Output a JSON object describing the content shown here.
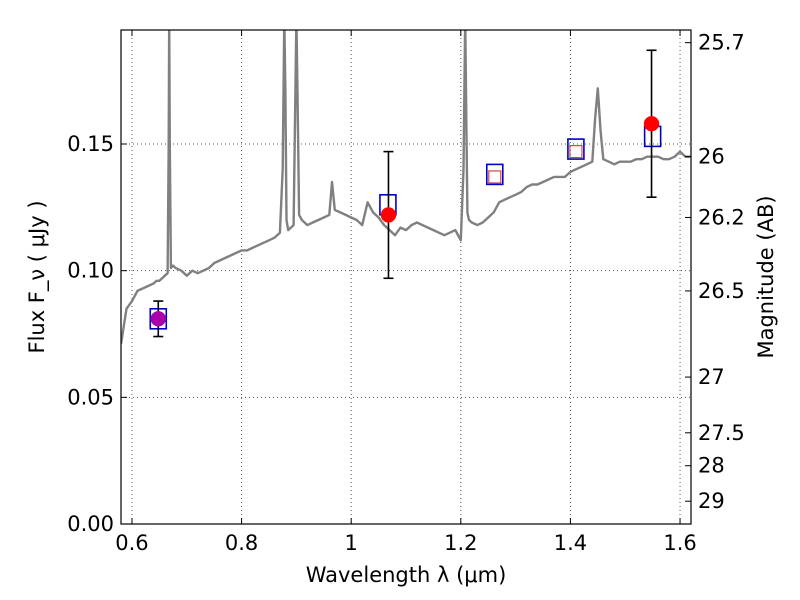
{
  "chart_data": {
    "type": "scatter",
    "title": "",
    "xlabel": "Wavelength  λ (μm)",
    "ylabel": "Flux  F_ν  ( μJy )",
    "ylabel_right": "Magnitude (AB)",
    "xlim": [
      0.58,
      1.62
    ],
    "ylim": [
      0.0,
      0.195
    ],
    "grid": true,
    "grid_style": "dotted",
    "x_ticks": [
      0.6,
      0.8,
      1.0,
      1.2,
      1.4,
      1.6
    ],
    "x_tick_labels": [
      "0.6",
      "0.8",
      "1",
      "1.2",
      "1.4",
      "1.6"
    ],
    "y_ticks": [
      0.0,
      0.05,
      0.1,
      0.15
    ],
    "y_tick_labels": [
      "0.00",
      "0.05",
      "0.10",
      "0.15"
    ],
    "right_ticks": [
      {
        "label": "25.7",
        "flux": 0.19
      },
      {
        "label": "26",
        "flux": 0.145
      },
      {
        "label": "26.2",
        "flux": 0.121
      },
      {
        "label": "26.5",
        "flux": 0.092
      },
      {
        "label": "27",
        "flux": 0.058
      },
      {
        "label": "27.5",
        "flux": 0.036
      },
      {
        "label": "28",
        "flux": 0.023
      },
      {
        "label": "29",
        "flux": 0.009
      }
    ],
    "colors": {
      "model": "#808080",
      "model_flux": "#0000cc",
      "observed": "#ff0000",
      "observed_overlap": "#aa00aa",
      "small_square": "#dd4444",
      "errorbar": "#000000",
      "grid": "#555555"
    },
    "series": [
      {
        "type": "line",
        "x": [
          0.58,
          0.59,
          0.6,
          0.61,
          0.62,
          0.63,
          0.64,
          0.645,
          0.65,
          0.655,
          0.66,
          0.665,
          0.667,
          0.668,
          0.669,
          0.671,
          0.675,
          0.68,
          0.69,
          0.7,
          0.71,
          0.72,
          0.73,
          0.74,
          0.75,
          0.76,
          0.77,
          0.78,
          0.79,
          0.8,
          0.81,
          0.82,
          0.83,
          0.84,
          0.85,
          0.86,
          0.87,
          0.875,
          0.878,
          0.88,
          0.882,
          0.885,
          0.89,
          0.895,
          0.9,
          0.902,
          0.905,
          0.91,
          0.92,
          0.93,
          0.94,
          0.95,
          0.96,
          0.965,
          0.97,
          0.98,
          0.99,
          1.0,
          1.01,
          1.02,
          1.03,
          1.04,
          1.05,
          1.06,
          1.07,
          1.08,
          1.09,
          1.1,
          1.11,
          1.12,
          1.13,
          1.14,
          1.15,
          1.16,
          1.17,
          1.18,
          1.19,
          1.2,
          1.205,
          1.208,
          1.21,
          1.212,
          1.215,
          1.22,
          1.23,
          1.24,
          1.25,
          1.26,
          1.27,
          1.28,
          1.29,
          1.3,
          1.31,
          1.32,
          1.33,
          1.34,
          1.35,
          1.36,
          1.37,
          1.38,
          1.39,
          1.4,
          1.41,
          1.42,
          1.43,
          1.44,
          1.445,
          1.45,
          1.455,
          1.46,
          1.47,
          1.48,
          1.49,
          1.5,
          1.51,
          1.52,
          1.53,
          1.54,
          1.55,
          1.56,
          1.57,
          1.58,
          1.59,
          1.6,
          1.61,
          1.62
        ],
        "y": [
          0.071,
          0.085,
          0.088,
          0.092,
          0.093,
          0.094,
          0.095,
          0.096,
          0.096,
          0.097,
          0.098,
          0.099,
          0.15,
          0.2,
          0.15,
          0.101,
          0.102,
          0.101,
          0.1,
          0.098,
          0.1,
          0.099,
          0.1,
          0.101,
          0.103,
          0.104,
          0.105,
          0.106,
          0.107,
          0.108,
          0.108,
          0.109,
          0.11,
          0.111,
          0.112,
          0.113,
          0.115,
          0.14,
          0.2,
          0.17,
          0.12,
          0.116,
          0.117,
          0.118,
          0.2,
          0.17,
          0.122,
          0.12,
          0.118,
          0.119,
          0.12,
          0.121,
          0.122,
          0.135,
          0.124,
          0.123,
          0.122,
          0.121,
          0.12,
          0.118,
          0.127,
          0.123,
          0.121,
          0.118,
          0.116,
          0.114,
          0.117,
          0.116,
          0.118,
          0.119,
          0.118,
          0.117,
          0.116,
          0.115,
          0.114,
          0.115,
          0.116,
          0.112,
          0.14,
          0.2,
          0.16,
          0.123,
          0.12,
          0.119,
          0.118,
          0.119,
          0.121,
          0.123,
          0.127,
          0.128,
          0.129,
          0.13,
          0.131,
          0.133,
          0.134,
          0.134,
          0.135,
          0.136,
          0.137,
          0.137,
          0.137,
          0.139,
          0.14,
          0.141,
          0.142,
          0.143,
          0.16,
          0.172,
          0.155,
          0.144,
          0.143,
          0.142,
          0.143,
          0.143,
          0.143,
          0.144,
          0.144,
          0.145,
          0.145,
          0.145,
          0.144,
          0.144,
          0.145,
          0.147,
          0.145,
          0.145
        ]
      },
      {
        "type": "scatter",
        "marker": "square",
        "x": [
          0.648,
          1.067,
          1.262,
          1.41,
          1.55
        ],
        "y": [
          0.081,
          0.126,
          0.138,
          0.148,
          0.153
        ]
      },
      {
        "type": "scatter",
        "marker": "circle",
        "x": [
          0.648,
          1.068,
          1.548
        ],
        "y": [
          0.081,
          0.122,
          0.158
        ],
        "yerr": [
          0.007,
          0.025,
          0.029
        ]
      },
      {
        "type": "scatter",
        "marker": "small-square",
        "x": [
          1.262,
          1.41
        ],
        "y": [
          0.137,
          0.147
        ]
      }
    ]
  }
}
